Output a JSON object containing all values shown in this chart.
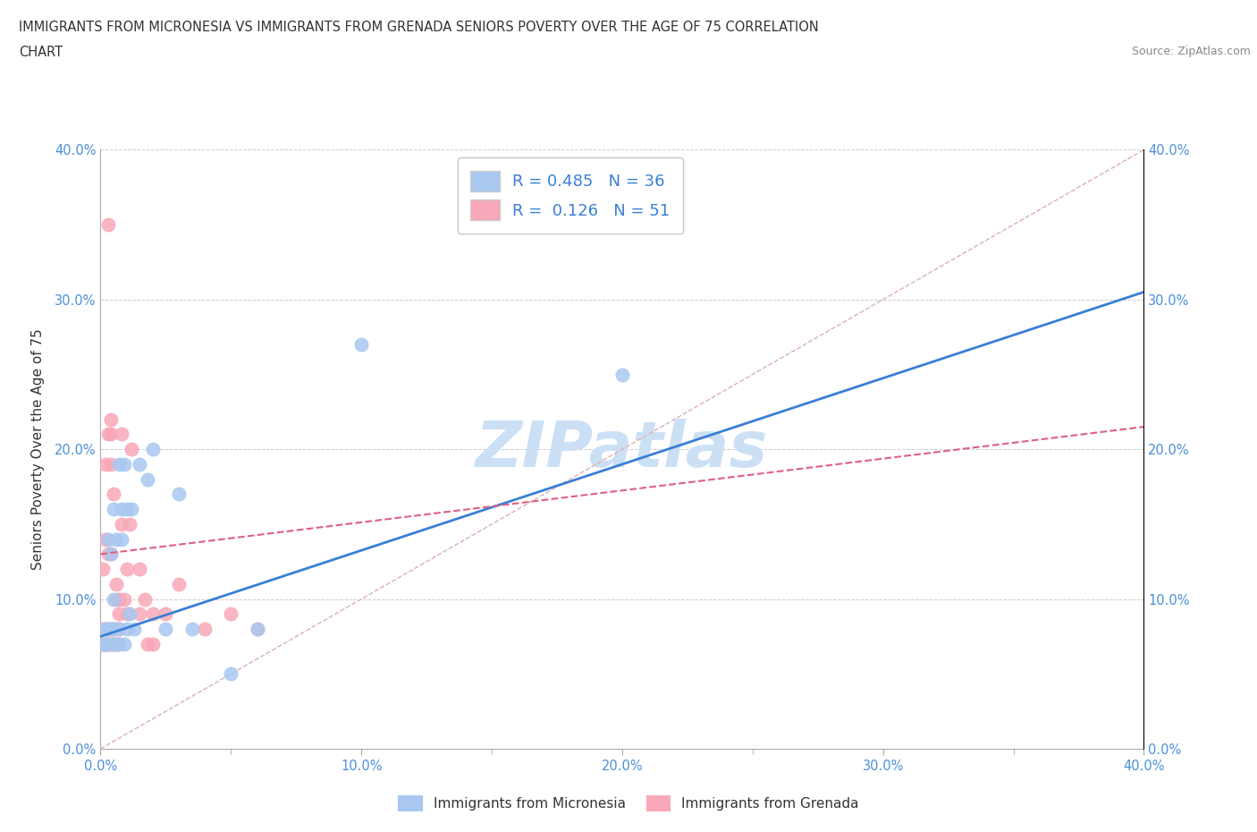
{
  "title_line1": "IMMIGRANTS FROM MICRONESIA VS IMMIGRANTS FROM GRENADA SENIORS POVERTY OVER THE AGE OF 75 CORRELATION",
  "title_line2": "CHART",
  "source": "Source: ZipAtlas.com",
  "ylabel": "Seniors Poverty Over the Age of 75",
  "xlim": [
    0.0,
    0.4
  ],
  "ylim": [
    0.0,
    0.4
  ],
  "xtick_labels": [
    "0.0%",
    "",
    "10.0%",
    "",
    "20.0%",
    "",
    "30.0%",
    "",
    "40.0%"
  ],
  "ytick_labels": [
    "0.0%",
    "10.0%",
    "20.0%",
    "30.0%",
    "40.0%"
  ],
  "xtick_vals": [
    0.0,
    0.05,
    0.1,
    0.15,
    0.2,
    0.25,
    0.3,
    0.35,
    0.4
  ],
  "ytick_vals": [
    0.0,
    0.1,
    0.2,
    0.3,
    0.4
  ],
  "micronesia_color": "#a8c8f0",
  "grenada_color": "#f8a8b8",
  "trendline_micronesia_color": "#3a7fd5",
  "trendline_grenada_color": "#e06080",
  "diag_color": "#ddbbbb",
  "watermark": "ZIPatlas",
  "watermark_color": "#cce0f5",
  "legend_R_micronesia": "0.485",
  "legend_N_micronesia": "36",
  "legend_R_grenada": "0.126",
  "legend_N_grenada": "51",
  "micronesia_x": [
    0.001,
    0.002,
    0.002,
    0.003,
    0.003,
    0.003,
    0.004,
    0.004,
    0.005,
    0.005,
    0.005,
    0.005,
    0.006,
    0.006,
    0.007,
    0.007,
    0.007,
    0.008,
    0.008,
    0.009,
    0.009,
    0.01,
    0.01,
    0.011,
    0.012,
    0.013,
    0.015,
    0.018,
    0.02,
    0.025,
    0.03,
    0.035,
    0.05,
    0.06,
    0.1,
    0.2
  ],
  "micronesia_y": [
    0.07,
    0.07,
    0.08,
    0.07,
    0.08,
    0.14,
    0.08,
    0.13,
    0.07,
    0.08,
    0.1,
    0.16,
    0.07,
    0.14,
    0.07,
    0.08,
    0.19,
    0.14,
    0.16,
    0.07,
    0.19,
    0.08,
    0.16,
    0.09,
    0.16,
    0.08,
    0.19,
    0.18,
    0.2,
    0.08,
    0.17,
    0.08,
    0.05,
    0.08,
    0.27,
    0.25
  ],
  "grenada_x": [
    0.001,
    0.001,
    0.001,
    0.002,
    0.002,
    0.002,
    0.002,
    0.002,
    0.002,
    0.003,
    0.003,
    0.003,
    0.003,
    0.003,
    0.003,
    0.004,
    0.004,
    0.004,
    0.004,
    0.004,
    0.004,
    0.005,
    0.005,
    0.005,
    0.005,
    0.006,
    0.006,
    0.006,
    0.006,
    0.007,
    0.007,
    0.007,
    0.007,
    0.008,
    0.008,
    0.009,
    0.01,
    0.01,
    0.011,
    0.012,
    0.015,
    0.015,
    0.017,
    0.018,
    0.02,
    0.02,
    0.025,
    0.03,
    0.04,
    0.05,
    0.06
  ],
  "grenada_y": [
    0.07,
    0.08,
    0.12,
    0.07,
    0.07,
    0.07,
    0.08,
    0.14,
    0.19,
    0.07,
    0.07,
    0.08,
    0.13,
    0.21,
    0.35,
    0.07,
    0.08,
    0.13,
    0.19,
    0.22,
    0.21,
    0.07,
    0.07,
    0.08,
    0.17,
    0.07,
    0.08,
    0.11,
    0.1,
    0.07,
    0.08,
    0.09,
    0.1,
    0.15,
    0.21,
    0.1,
    0.09,
    0.12,
    0.15,
    0.2,
    0.09,
    0.12,
    0.1,
    0.07,
    0.09,
    0.07,
    0.09,
    0.11,
    0.08,
    0.09,
    0.08
  ],
  "trendline_mic_x0": 0.0,
  "trendline_mic_y0": 0.075,
  "trendline_mic_x1": 0.4,
  "trendline_mic_y1": 0.305,
  "trendline_gren_x0": 0.0,
  "trendline_gren_y0": 0.13,
  "trendline_gren_x1": 0.4,
  "trendline_gren_y1": 0.215
}
